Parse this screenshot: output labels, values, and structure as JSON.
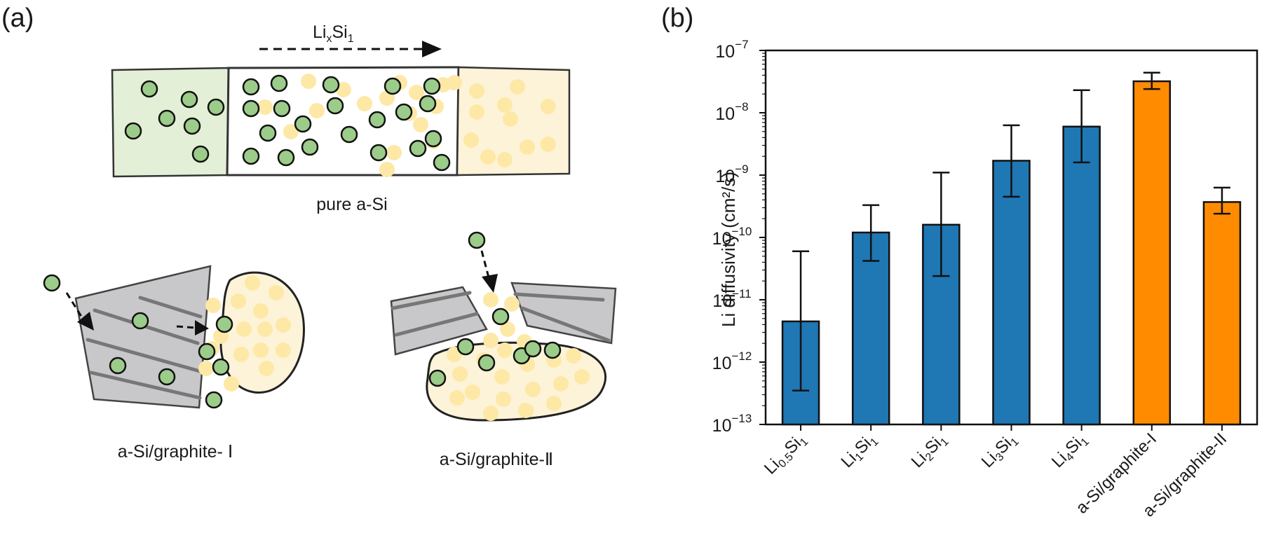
{
  "panel_a": {
    "label": "(a)",
    "arrow_label_main": "Li",
    "arrow_label_sub1": "x",
    "arrow_label_mid": "Si",
    "arrow_label_sub2": "1",
    "pure_caption": "pure a-Si",
    "graphite1_caption": "a-Si/graphite- Ⅰ",
    "graphite2_caption": "a-Si/graphite-Ⅱ",
    "colors": {
      "li_atom": "#9ccc8a",
      "graphite_atom": "#fde8a6",
      "li_region": "#e3efd6",
      "graphite_region": "#fdf3d8",
      "sheet": "#c8c8ca"
    }
  },
  "panel_b": {
    "label": "(b)"
  },
  "chart_data": {
    "type": "bar",
    "scale": "log",
    "ylabel": "Li diffusivity (cm²/s)",
    "ylim": [
      1e-13,
      1e-07
    ],
    "yticks": [
      {
        "base": "10",
        "exp": "−7"
      },
      {
        "base": "10",
        "exp": "−8"
      },
      {
        "base": "10",
        "exp": "−9"
      },
      {
        "base": "10",
        "exp": "−10"
      },
      {
        "base": "10",
        "exp": "−11"
      },
      {
        "base": "10",
        "exp": "−12"
      },
      {
        "base": "10",
        "exp": "−13"
      }
    ],
    "categories": [
      {
        "parts": [
          [
            "Li",
            ""
          ],
          [
            "0.5",
            "sub"
          ],
          [
            "Si",
            ""
          ],
          [
            "1",
            "sub"
          ]
        ]
      },
      {
        "parts": [
          [
            "Li",
            ""
          ],
          [
            "1",
            "sub"
          ],
          [
            "Si",
            ""
          ],
          [
            "1",
            "sub"
          ]
        ]
      },
      {
        "parts": [
          [
            "Li",
            ""
          ],
          [
            "2",
            "sub"
          ],
          [
            "Si",
            ""
          ],
          [
            "1",
            "sub"
          ]
        ]
      },
      {
        "parts": [
          [
            "Li",
            ""
          ],
          [
            "3",
            "sub"
          ],
          [
            "Si",
            ""
          ],
          [
            "1",
            "sub"
          ]
        ]
      },
      {
        "parts": [
          [
            "Li",
            ""
          ],
          [
            "4",
            "sub"
          ],
          [
            "Si",
            ""
          ],
          [
            "1",
            "sub"
          ]
        ]
      },
      {
        "parts": [
          [
            "a-Si/graphite-I",
            ""
          ]
        ]
      },
      {
        "parts": [
          [
            "a-Si/graphite-II",
            ""
          ]
        ]
      }
    ],
    "values": [
      4.5e-12,
      1.2e-10,
      1.6e-10,
      1.7e-09,
      6e-09,
      3.2e-08,
      3.7e-10
    ],
    "err_low": [
      3.5e-13,
      4.2e-11,
      2.4e-11,
      4.5e-10,
      1.6e-09,
      2.4e-08,
      2.4e-10
    ],
    "err_high": [
      6e-11,
      3.3e-10,
      1.1e-09,
      6.3e-09,
      2.3e-08,
      4.4e-08,
      6.3e-10
    ],
    "colors": [
      "#1f77b4",
      "#1f77b4",
      "#1f77b4",
      "#1f77b4",
      "#1f77b4",
      "#ff8c00",
      "#ff8c00"
    ]
  }
}
